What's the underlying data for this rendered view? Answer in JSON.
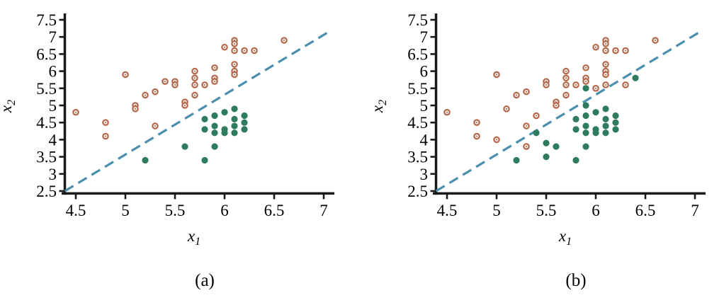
{
  "figure": {
    "xlabel_base": "x",
    "xlabel_sub": "1",
    "ylabel_base": "x",
    "ylabel_sub": "2",
    "colors": {
      "class1_marker": "#b5694c",
      "class2_marker": "#2e7c5d",
      "boundary_line": "#4a8fad",
      "axis": "#1a1a1a"
    }
  },
  "chart_data": [
    {
      "type": "scatter",
      "caption": "(a)",
      "xlabel": "x1",
      "ylabel": "x2",
      "xlim": [
        4.39,
        7.1
      ],
      "ylim": [
        2.44,
        7.62
      ],
      "xticks": [
        "4.5",
        "5",
        "5.5",
        "6",
        "6.5",
        "7"
      ],
      "yticks": [
        "2.5",
        "3",
        "3.5",
        "4",
        "4.5",
        "5",
        "5.5",
        "6",
        "6.5",
        "7",
        "7.5"
      ],
      "grid": false,
      "legend_position": "none",
      "series": [
        {
          "name": "class-1-open-circles",
          "marker": "open-circle",
          "color": "#b5694c",
          "points": [
            [
              4.5,
              4.8
            ],
            [
              4.8,
              4.5
            ],
            [
              4.8,
              4.1
            ],
            [
              5.0,
              5.9
            ],
            [
              5.1,
              5.0
            ],
            [
              5.1,
              4.9
            ],
            [
              5.2,
              5.3
            ],
            [
              5.3,
              5.4
            ],
            [
              5.3,
              4.4
            ],
            [
              5.4,
              5.7
            ],
            [
              5.5,
              5.7
            ],
            [
              5.5,
              5.6
            ],
            [
              5.6,
              5.1
            ],
            [
              5.6,
              5.0
            ],
            [
              5.7,
              6.0
            ],
            [
              5.7,
              5.8
            ],
            [
              5.7,
              5.6
            ],
            [
              5.7,
              5.3
            ],
            [
              5.8,
              5.6
            ],
            [
              5.9,
              6.1
            ],
            [
              5.9,
              5.8
            ],
            [
              5.9,
              5.7
            ],
            [
              6.0,
              6.7
            ],
            [
              6.1,
              6.9
            ],
            [
              6.1,
              6.8
            ],
            [
              6.1,
              6.6
            ],
            [
              6.1,
              6.2
            ],
            [
              6.1,
              6.0
            ],
            [
              6.1,
              5.9
            ],
            [
              6.2,
              6.6
            ],
            [
              6.3,
              6.6
            ],
            [
              6.6,
              6.9
            ]
          ]
        },
        {
          "name": "class-2-filled-dots",
          "marker": "filled-circle",
          "color": "#2e7c5d",
          "points": [
            [
              5.2,
              3.4
            ],
            [
              5.6,
              3.8
            ],
            [
              5.8,
              3.4
            ],
            [
              5.9,
              3.8
            ],
            [
              5.8,
              4.6
            ],
            [
              5.8,
              4.3
            ],
            [
              5.9,
              4.7
            ],
            [
              5.9,
              4.4
            ],
            [
              5.9,
              4.2
            ],
            [
              6.0,
              4.8
            ],
            [
              6.0,
              4.3
            ],
            [
              6.0,
              4.2
            ],
            [
              6.1,
              4.9
            ],
            [
              6.1,
              4.6
            ],
            [
              6.1,
              4.4
            ],
            [
              6.1,
              4.2
            ],
            [
              6.2,
              4.7
            ],
            [
              6.2,
              4.5
            ],
            [
              6.2,
              4.3
            ]
          ]
        }
      ],
      "boundary_line": {
        "name": "decision-boundary",
        "style": "dashed",
        "color": "#4a8fad",
        "x1": 4.39,
        "y1": 2.5,
        "x2": 7.08,
        "y2": 7.2
      }
    },
    {
      "type": "scatter",
      "caption": "(b)",
      "xlabel": "x1",
      "ylabel": "x2",
      "xlim": [
        4.39,
        7.1
      ],
      "ylim": [
        2.44,
        7.62
      ],
      "xticks": [
        "4.5",
        "5",
        "5.5",
        "6",
        "6.5",
        "7"
      ],
      "yticks": [
        "2.5",
        "3",
        "3.5",
        "4",
        "4.5",
        "5",
        "5.5",
        "6",
        "6.5",
        "7",
        "7.5"
      ],
      "grid": false,
      "legend_position": "none",
      "series": [
        {
          "name": "class-1-open-circles",
          "marker": "open-circle",
          "color": "#b5694c",
          "points": [
            [
              4.5,
              4.8
            ],
            [
              4.8,
              4.5
            ],
            [
              4.8,
              4.1
            ],
            [
              5.0,
              5.9
            ],
            [
              5.0,
              4.0
            ],
            [
              5.1,
              4.9
            ],
            [
              5.2,
              5.3
            ],
            [
              5.3,
              5.4
            ],
            [
              5.3,
              4.4
            ],
            [
              5.3,
              3.8
            ],
            [
              5.4,
              4.7
            ],
            [
              5.5,
              5.7
            ],
            [
              5.5,
              5.6
            ],
            [
              5.6,
              5.1
            ],
            [
              5.6,
              5.0
            ],
            [
              5.7,
              6.0
            ],
            [
              5.7,
              5.8
            ],
            [
              5.7,
              5.6
            ],
            [
              5.7,
              5.3
            ],
            [
              5.8,
              5.6
            ],
            [
              5.9,
              6.1
            ],
            [
              5.9,
              5.8
            ],
            [
              5.9,
              5.7
            ],
            [
              6.0,
              6.7
            ],
            [
              6.0,
              5.5
            ],
            [
              6.1,
              6.9
            ],
            [
              6.1,
              6.8
            ],
            [
              6.1,
              6.6
            ],
            [
              6.1,
              6.2
            ],
            [
              6.1,
              6.0
            ],
            [
              6.1,
              5.9
            ],
            [
              6.1,
              5.6
            ],
            [
              6.2,
              6.6
            ],
            [
              6.3,
              6.6
            ],
            [
              6.3,
              5.6
            ],
            [
              6.6,
              6.9
            ]
          ]
        },
        {
          "name": "class-2-filled-dots",
          "marker": "filled-circle",
          "color": "#2e7c5d",
          "points": [
            [
              5.2,
              3.4
            ],
            [
              5.4,
              4.2
            ],
            [
              5.5,
              3.9
            ],
            [
              5.5,
              3.5
            ],
            [
              5.6,
              3.8
            ],
            [
              5.8,
              3.4
            ],
            [
              5.9,
              3.8
            ],
            [
              5.8,
              4.6
            ],
            [
              5.8,
              4.3
            ],
            [
              5.9,
              5.5
            ],
            [
              5.9,
              5.0
            ],
            [
              5.9,
              4.7
            ],
            [
              5.9,
              4.4
            ],
            [
              5.9,
              4.2
            ],
            [
              6.0,
              4.8
            ],
            [
              6.0,
              4.3
            ],
            [
              6.0,
              4.2
            ],
            [
              6.1,
              4.9
            ],
            [
              6.1,
              4.6
            ],
            [
              6.1,
              4.4
            ],
            [
              6.1,
              4.2
            ],
            [
              6.2,
              4.7
            ],
            [
              6.2,
              4.5
            ],
            [
              6.2,
              4.3
            ],
            [
              6.4,
              5.8
            ]
          ]
        }
      ],
      "boundary_line": {
        "name": "decision-boundary",
        "style": "dashed",
        "color": "#4a8fad",
        "x1": 4.39,
        "y1": 2.5,
        "x2": 7.08,
        "y2": 7.2
      }
    }
  ]
}
